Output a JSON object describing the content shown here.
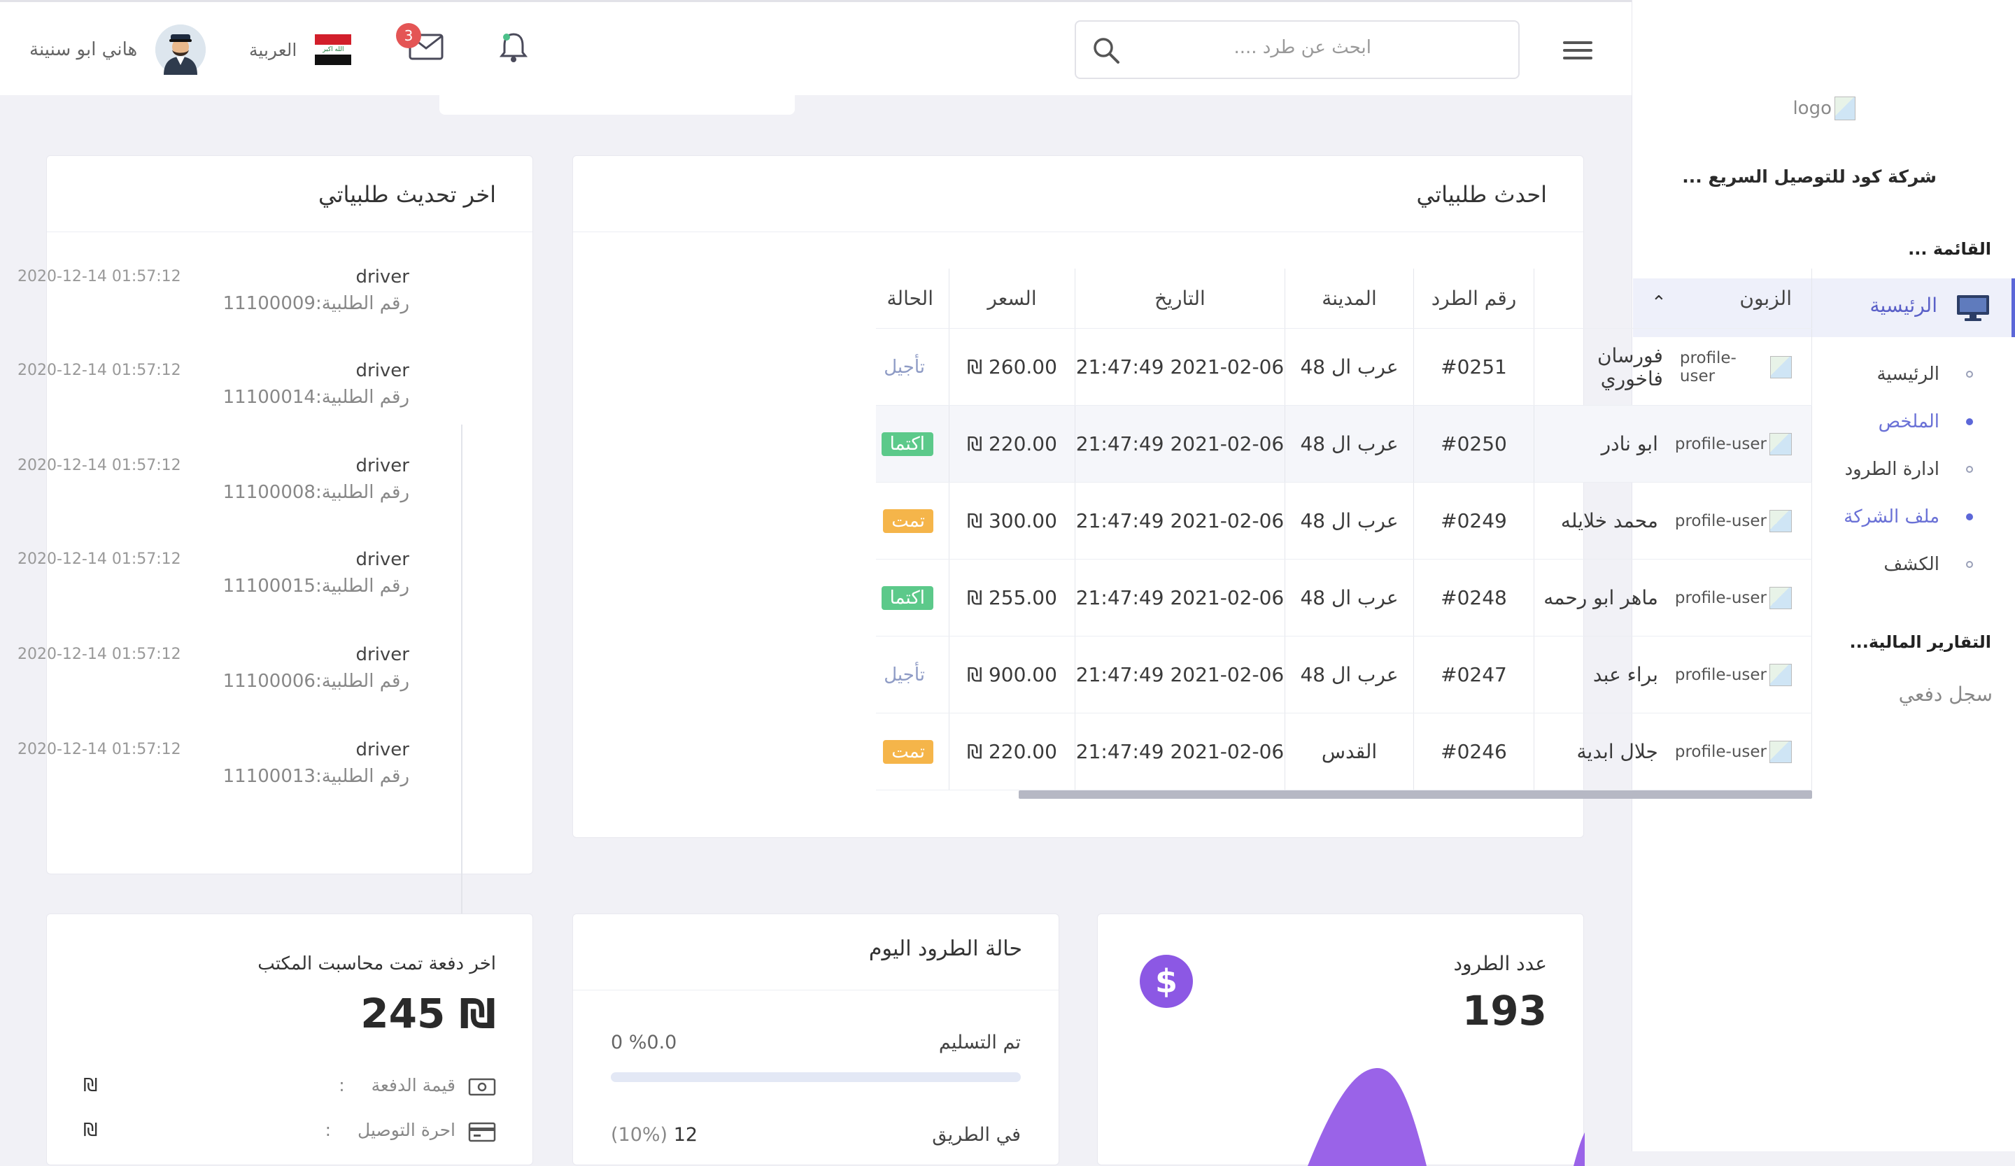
{
  "sidebar": {
    "logo_alt": "logo",
    "company": "شركة كود للتوصيل السريع ...",
    "sections": {
      "menu": "القائمة ...",
      "financial": "التقارير المالية..."
    },
    "home": "الرئيسية",
    "sub_items": [
      "الرئيسية",
      "الملخص",
      "ادارة الطرود",
      "ملف الشركة",
      "الكشف"
    ],
    "payments": "سجل دفعي"
  },
  "header": {
    "search_placeholder": "ابحث عن طرد ....",
    "mail_count": "3",
    "language": "العربية",
    "user_name": "هاني ابو سنينة"
  },
  "orders": {
    "title": "احدث طلبياتي",
    "columns": {
      "customer": "الزبون",
      "number": "رقم الطرد",
      "city": "المدينة",
      "date": "التاريخ",
      "price": "السعر",
      "status": "الحالة"
    },
    "avatar_alt": "profile-user",
    "rows": [
      {
        "customer": "فورسان فاخوري",
        "number": "#0251",
        "city": "عرب ال 48",
        "date": "2021-02-06 21:47:49",
        "price": "260.00 ₪",
        "status": "تأجيل",
        "status_type": "later"
      },
      {
        "customer": "ابو نادر",
        "number": "#0250",
        "city": "عرب ال 48",
        "date": "2021-02-06 21:47:49",
        "price": "220.00 ₪",
        "status": "اكتما",
        "status_type": "done"
      },
      {
        "customer": "محمد خلايله",
        "number": "#0249",
        "city": "عرب ال 48",
        "date": "2021-02-06 21:47:49",
        "price": "300.00 ₪",
        "status": "تمت",
        "status_type": "ok"
      },
      {
        "customer": "ماهر ابو رحمه",
        "number": "#0248",
        "city": "عرب ال 48",
        "date": "2021-02-06 21:47:49",
        "price": "255.00 ₪",
        "status": "اكتما",
        "status_type": "done"
      },
      {
        "customer": "براء عبد",
        "number": "#0247",
        "city": "عرب ال 48",
        "date": "2021-02-06 21:47:49",
        "price": "900.00 ₪",
        "status": "تأجيل",
        "status_type": "later"
      },
      {
        "customer": "جلال ابدية",
        "number": "#0246",
        "city": "القدس",
        "date": "2021-02-06 21:47:49",
        "price": "220.00 ₪",
        "status": "تمت",
        "status_type": "ok"
      }
    ]
  },
  "updates": {
    "title": "اخر تحديث طلبياتي",
    "items": [
      {
        "who": "driver",
        "time": "2020-12-14 01:57:12",
        "order": "رقم الطلبية:11100009"
      },
      {
        "who": "driver",
        "time": "2020-12-14 01:57:12",
        "order": "رقم الطلبية:11100014"
      },
      {
        "who": "driver",
        "time": "2020-12-14 01:57:12",
        "order": "رقم الطلبية:11100008"
      },
      {
        "who": "driver",
        "time": "2020-12-14 01:57:12",
        "order": "رقم الطلبية:11100015"
      },
      {
        "who": "driver",
        "time": "2020-12-14 01:57:12",
        "order": "رقم الطلبية:11100006"
      },
      {
        "who": "driver",
        "time": "2020-12-14 01:57:12",
        "order": "رقم الطلبية:11100013"
      }
    ]
  },
  "parcels_count": {
    "title": "عدد الطرود",
    "value": "193",
    "icon": "$"
  },
  "parcels_today": {
    "title": "حالة الطرود اليوم",
    "delivered_label": "تم التسليم",
    "delivered_value": "0 %0.0",
    "delivered_fraction": 0.0,
    "on_way_label": "في الطريق",
    "on_way_count": "12",
    "on_way_percent": "(10%)"
  },
  "last_payment": {
    "title": "اخر دفعة تمت محاسبت المكتب",
    "amount": "245 ₪",
    "rows": [
      {
        "label": "قيمة الدفعة",
        "sep": ":",
        "currency": "₪"
      },
      {
        "label": "احرة التوصيل",
        "sep": ":",
        "currency": "₪"
      }
    ]
  },
  "colors": {
    "accent": "#5c67d8",
    "purple": "#8c58e4",
    "success": "#5cc98a",
    "warning": "#f5b54a"
  }
}
